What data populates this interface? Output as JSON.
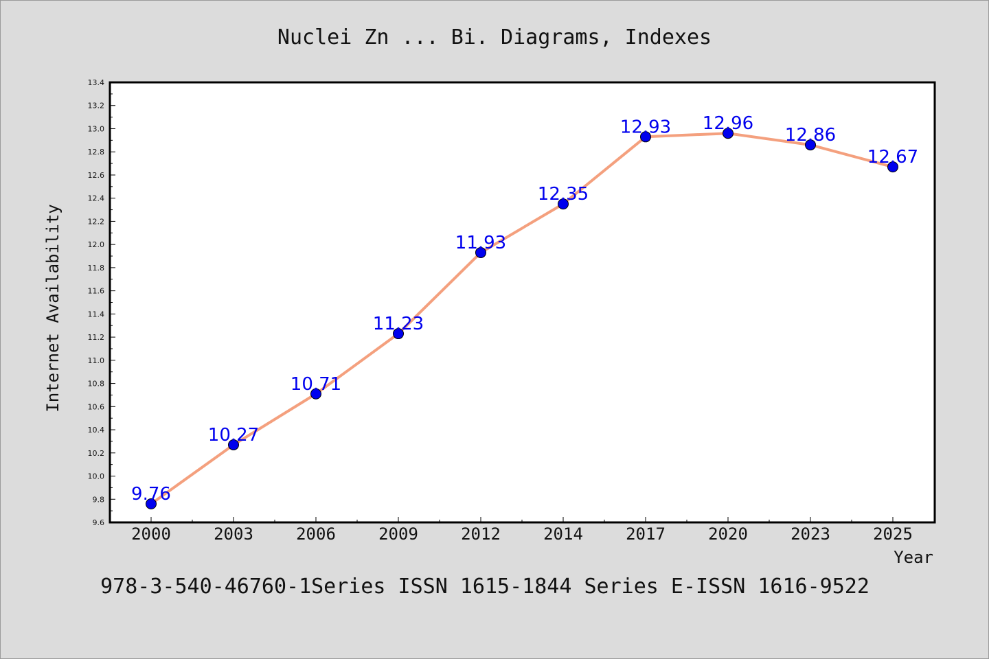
{
  "chart_data": {
    "type": "line",
    "title": "Nuclei Zn ... Bi. Diagrams, Indexes",
    "xlabel": "Year",
    "ylabel": "Internet Availability",
    "footer": "978-3-540-46760-1Series ISSN 1615-1844 Series E-ISSN 1616-9522",
    "categories": [
      "2000",
      "2003",
      "2006",
      "2009",
      "2012",
      "2014",
      "2017",
      "2020",
      "2023",
      "2025"
    ],
    "series": [
      {
        "values": [
          9.76,
          10.27,
          10.71,
          11.23,
          11.93,
          12.35,
          12.93,
          12.96,
          12.86,
          12.67
        ],
        "labels": [
          "9.76",
          "10.27",
          "10.71",
          "11.23",
          "11.93",
          "12.35",
          "12.93",
          "12.96",
          "12.86",
          "12.67"
        ]
      }
    ],
    "ylim": [
      9.6,
      13.4
    ],
    "yticks": [
      "9.6",
      "9.8",
      "10.0",
      "10.2",
      "10.4",
      "10.6",
      "10.8",
      "11.0",
      "11.2",
      "11.4",
      "11.6",
      "11.8",
      "12.0",
      "12.2",
      "12.4",
      "12.6",
      "12.8",
      "13.0",
      "13.2",
      "13.4"
    ],
    "grid": false,
    "colors": {
      "line": "#f4a07e",
      "marker": "#0000ee",
      "label": "#0000ee",
      "background": "#dcdcdc",
      "plot_background": "#ffffff"
    }
  }
}
